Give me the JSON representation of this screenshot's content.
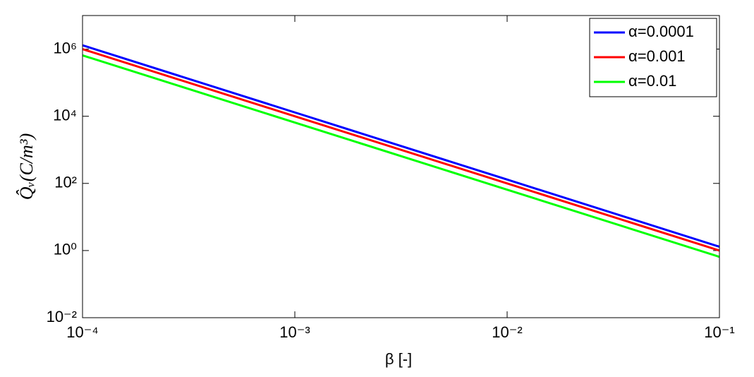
{
  "chart_data": {
    "type": "line",
    "xlabel": "β [-]",
    "ylabel": "Q̂ᵥ(C/m³)",
    "x": [
      0.0001,
      0.001,
      0.01,
      0.1
    ],
    "series": [
      {
        "name": "α=0.0001",
        "color": "#0000ff",
        "values": [
          1300000,
          13000,
          130,
          1.3
        ]
      },
      {
        "name": "α=0.001",
        "color": "#ff0000",
        "values": [
          1000000,
          10000,
          100,
          1
        ]
      },
      {
        "name": "α=0.01",
        "color": "#00ff00",
        "values": [
          650000,
          6500,
          65,
          0.65
        ]
      }
    ],
    "xscale": "log",
    "yscale": "log",
    "xlim": [
      0.0001,
      0.1
    ],
    "ylim": [
      0.01,
      10000000
    ],
    "xticks": [
      {
        "value": 0.0001,
        "label": "10⁻⁴"
      },
      {
        "value": 0.001,
        "label": "10⁻³"
      },
      {
        "value": 0.01,
        "label": "10⁻²"
      },
      {
        "value": 0.1,
        "label": "10⁻¹"
      }
    ],
    "yticks": [
      {
        "value": 0.01,
        "label": "10⁻²"
      },
      {
        "value": 1,
        "label": "10⁰"
      },
      {
        "value": 100,
        "label": "10²"
      },
      {
        "value": 10000,
        "label": "10⁴"
      },
      {
        "value": 1000000,
        "label": "10⁶"
      }
    ],
    "grid": false,
    "legend": "northeast"
  }
}
